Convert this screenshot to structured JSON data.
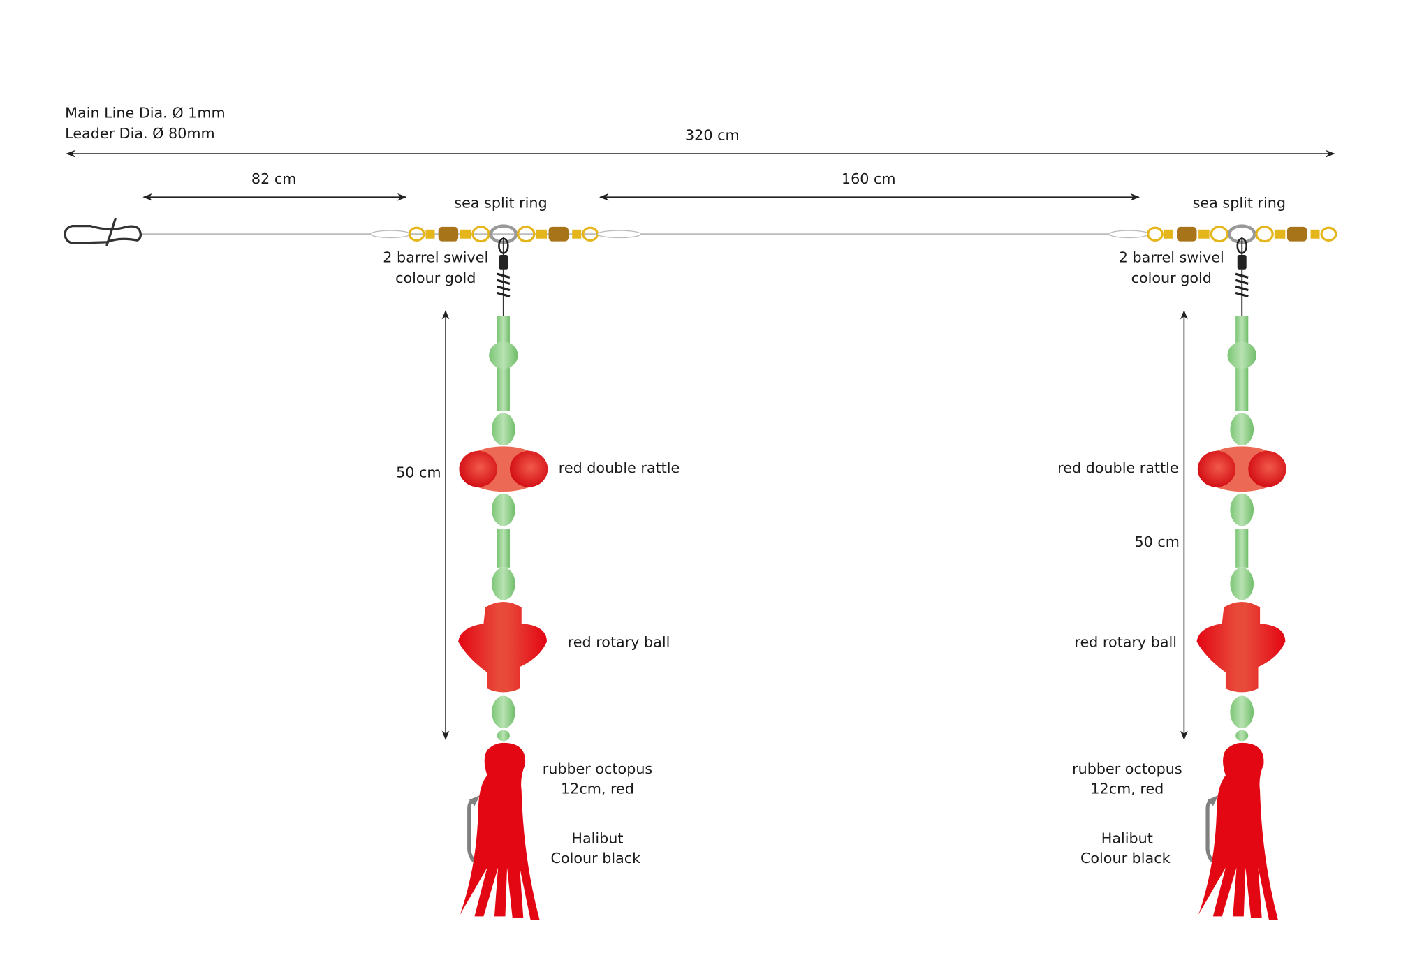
{
  "specs": {
    "main_line": "Main Line Dia. Ø 1mm",
    "leader": "Leader Dia. Ø 80mm"
  },
  "dimensions": {
    "total": "320 cm",
    "snap_to_swivel": "82 cm",
    "between_droppers": "160 cm",
    "dropper_left": "50 cm",
    "dropper_right": "50 cm"
  },
  "labels": {
    "split_ring": "sea split ring",
    "swivel_line1": "2 barrel swivel",
    "swivel_line2": "colour gold",
    "rattle": "red double rattle",
    "rotary": "red rotary ball",
    "octopus_line1": "rubber octopus",
    "octopus_line2": "12cm, red",
    "hook_line1": "Halibut",
    "hook_line2": "Colour black"
  },
  "colors": {
    "gold": "#e5b51c",
    "barrel": "#a8741a",
    "bead_green": "#8fcf88",
    "red": "#e30613",
    "hook": "#808080",
    "snap": "#333333"
  }
}
